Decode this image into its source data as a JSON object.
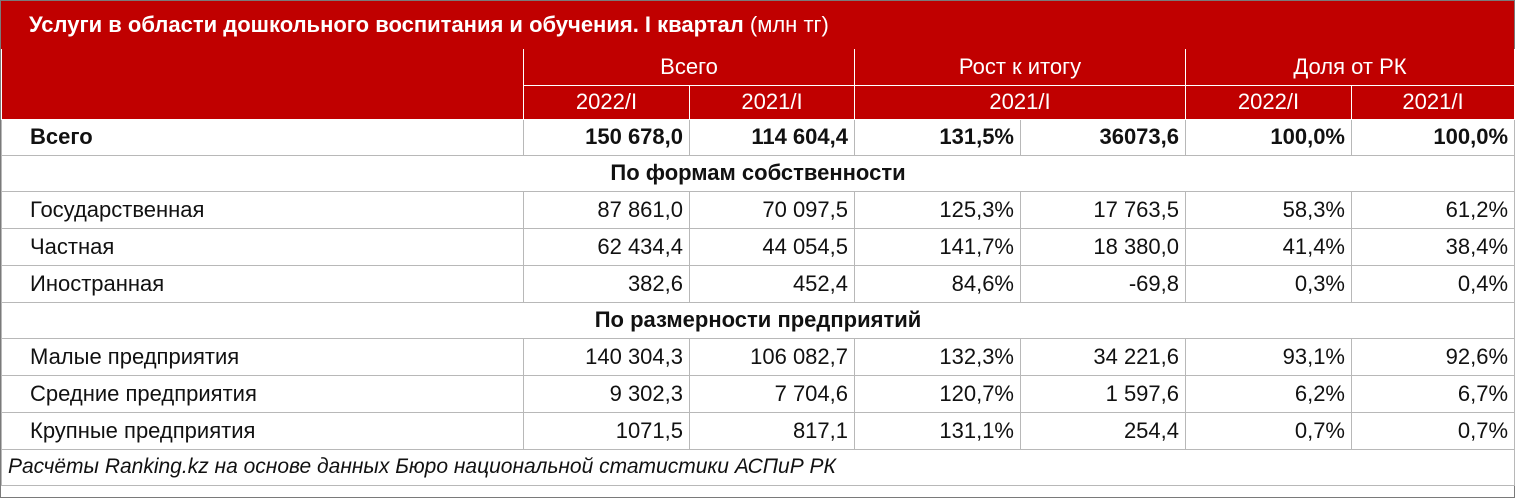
{
  "title": {
    "main": "Услуги в области дошкольного воспитания и обучения. I квартал",
    "unit": "(млн тг)"
  },
  "header": {
    "group_total": "Всего",
    "group_growth": "Рост к итогу",
    "group_share": "Доля от РК",
    "total_2022": "2022/I",
    "total_2021": "2021/I",
    "growth_2021": "2021/I",
    "share_2022": "2022/I",
    "share_2021": "2021/I"
  },
  "total_row": {
    "label": "Всего",
    "values": [
      "150 678,0",
      "114 604,4",
      "131,5%",
      "36073,6",
      "100,0%",
      "100,0%"
    ]
  },
  "sections": [
    {
      "title": "По формам собственности",
      "rows": [
        {
          "label": "Государственная",
          "values": [
            "87 861,0",
            "70 097,5",
            "125,3%",
            "17 763,5",
            "58,3%",
            "61,2%"
          ]
        },
        {
          "label": "Частная",
          "values": [
            "62 434,4",
            "44 054,5",
            "141,7%",
            "18 380,0",
            "41,4%",
            "38,4%"
          ]
        },
        {
          "label": "Иностранная",
          "values": [
            "382,6",
            "452,4",
            "84,6%",
            "-69,8",
            "0,3%",
            "0,4%"
          ]
        }
      ]
    },
    {
      "title": "По размерности предприятий",
      "rows": [
        {
          "label": "Малые предприятия",
          "values": [
            "140 304,3",
            "106 082,7",
            "132,3%",
            "34 221,6",
            "93,1%",
            "92,6%"
          ]
        },
        {
          "label": "Средние предприятия",
          "values": [
            "9 302,3",
            "7 704,6",
            "120,7%",
            "1 597,6",
            "6,2%",
            "6,7%"
          ]
        },
        {
          "label": "Крупные предприятия",
          "values": [
            "1071,5",
            "817,1",
            "131,1%",
            "254,4",
            "0,7%",
            "0,7%"
          ]
        }
      ]
    }
  ],
  "footer": "Расчёты Ranking.kz на основе данных Бюро национальной статистики АСПиР РК",
  "colors": {
    "accent": "#c00000"
  }
}
